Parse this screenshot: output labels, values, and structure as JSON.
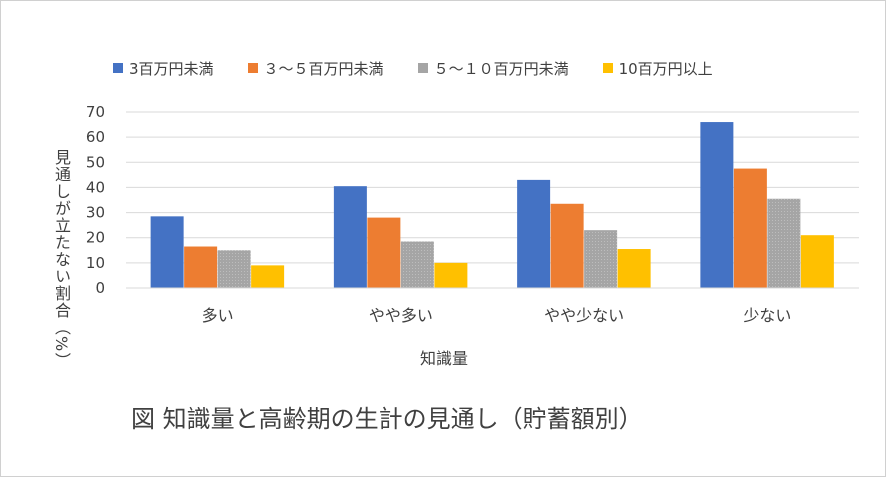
{
  "colors": {
    "series": [
      "#4472C4",
      "#ED7D31",
      "#A5A5A5",
      "#FFC000"
    ],
    "grid": "#d9d9d9",
    "text": "#404040"
  },
  "caption": "図 知識量と高齢期の生計の見通し（貯蓄額別）",
  "chart_data": {
    "type": "bar",
    "title": "",
    "xlabel": "知識量",
    "ylabel": "見通しが立たない割合（%）",
    "ylim": [
      0,
      70
    ],
    "yticks": [
      "0",
      "10",
      "20",
      "30",
      "40",
      "50",
      "60",
      "70"
    ],
    "grid": true,
    "legend": "top",
    "categories": [
      "多い",
      "やや多い",
      "やや少ない",
      "少ない"
    ],
    "series": [
      {
        "name": "3百万円未満",
        "values": [
          28.5,
          40.5,
          43,
          66
        ]
      },
      {
        "name": "３～５百万円未満",
        "values": [
          16.5,
          28,
          33.5,
          47.5
        ]
      },
      {
        "name": "５～１０百万円未満",
        "values": [
          15,
          18.5,
          23,
          35.5
        ]
      },
      {
        "name": "10百万円以上",
        "values": [
          9,
          10,
          15.5,
          21
        ]
      }
    ]
  }
}
